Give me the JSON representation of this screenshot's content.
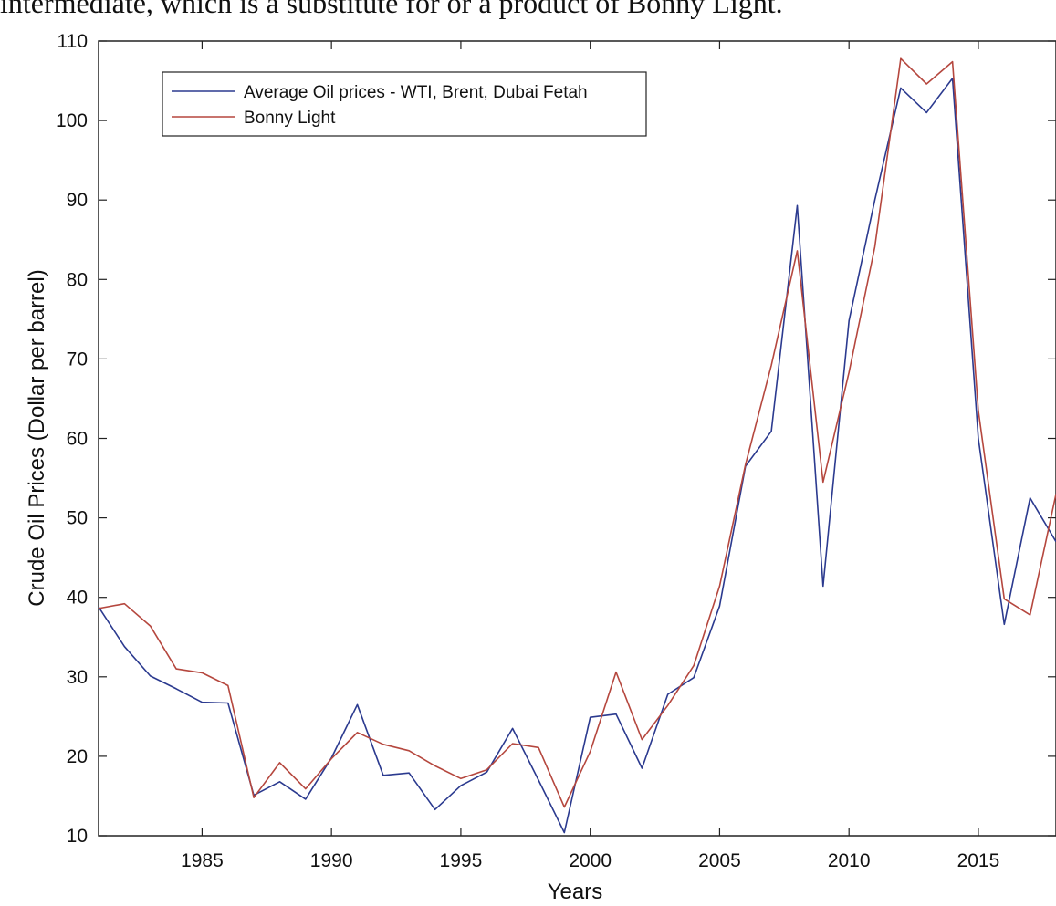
{
  "caption_fragment": "intermediate, which is a substitute for or a product of Bonny Light.",
  "chart_data": {
    "type": "line",
    "xlabel": "Years",
    "ylabel": "Crude Oil Prices (Dollar per barrel)",
    "xlim": [
      1981,
      2018
    ],
    "ylim": [
      10,
      110
    ],
    "xticks": [
      1985,
      1990,
      1995,
      2000,
      2005,
      2010,
      2015
    ],
    "yticks": [
      10,
      20,
      30,
      40,
      50,
      60,
      70,
      80,
      90,
      100,
      110
    ],
    "grid": false,
    "legend_position": "top-left",
    "x": [
      1981,
      1982,
      1983,
      1984,
      1985,
      1986,
      1987,
      1988,
      1989,
      1990,
      1991,
      1992,
      1993,
      1994,
      1995,
      1996,
      1997,
      1998,
      1999,
      2000,
      2001,
      2002,
      2003,
      2004,
      2005,
      2006,
      2007,
      2008,
      2009,
      2010,
      2011,
      2012,
      2013,
      2014,
      2015,
      2016,
      2017,
      2018
    ],
    "series": [
      {
        "name": "Average Oil prices - WTI, Brent, Dubai Fetah",
        "color": "#2b3a8f",
        "values": [
          38.8,
          33.8,
          30.1,
          28.5,
          26.8,
          26.7,
          15.1,
          16.8,
          14.6,
          19.8,
          26.5,
          17.6,
          17.9,
          13.3,
          16.3,
          18.0,
          23.5,
          17.0,
          10.4,
          24.9,
          25.3,
          18.5,
          27.8,
          29.9,
          38.9,
          56.5,
          60.9,
          89.3,
          41.4,
          74.8,
          90.0,
          104.1,
          101.0,
          105.3,
          60.0,
          36.6,
          52.5,
          47.0
        ]
      },
      {
        "name": "Bonny Light",
        "color": "#b5473e",
        "values": [
          38.6,
          39.2,
          36.4,
          31.0,
          30.5,
          28.9,
          14.8,
          19.2,
          15.9,
          19.7,
          23.0,
          21.5,
          20.7,
          18.8,
          17.2,
          18.3,
          21.6,
          21.1,
          13.6,
          20.6,
          30.6,
          22.1,
          26.4,
          31.4,
          41.4,
          56.7,
          69.2,
          83.6,
          54.5,
          68.3,
          84.1,
          107.8,
          104.6,
          107.4,
          63.5,
          39.8,
          37.8,
          53.0
        ]
      }
    ]
  }
}
